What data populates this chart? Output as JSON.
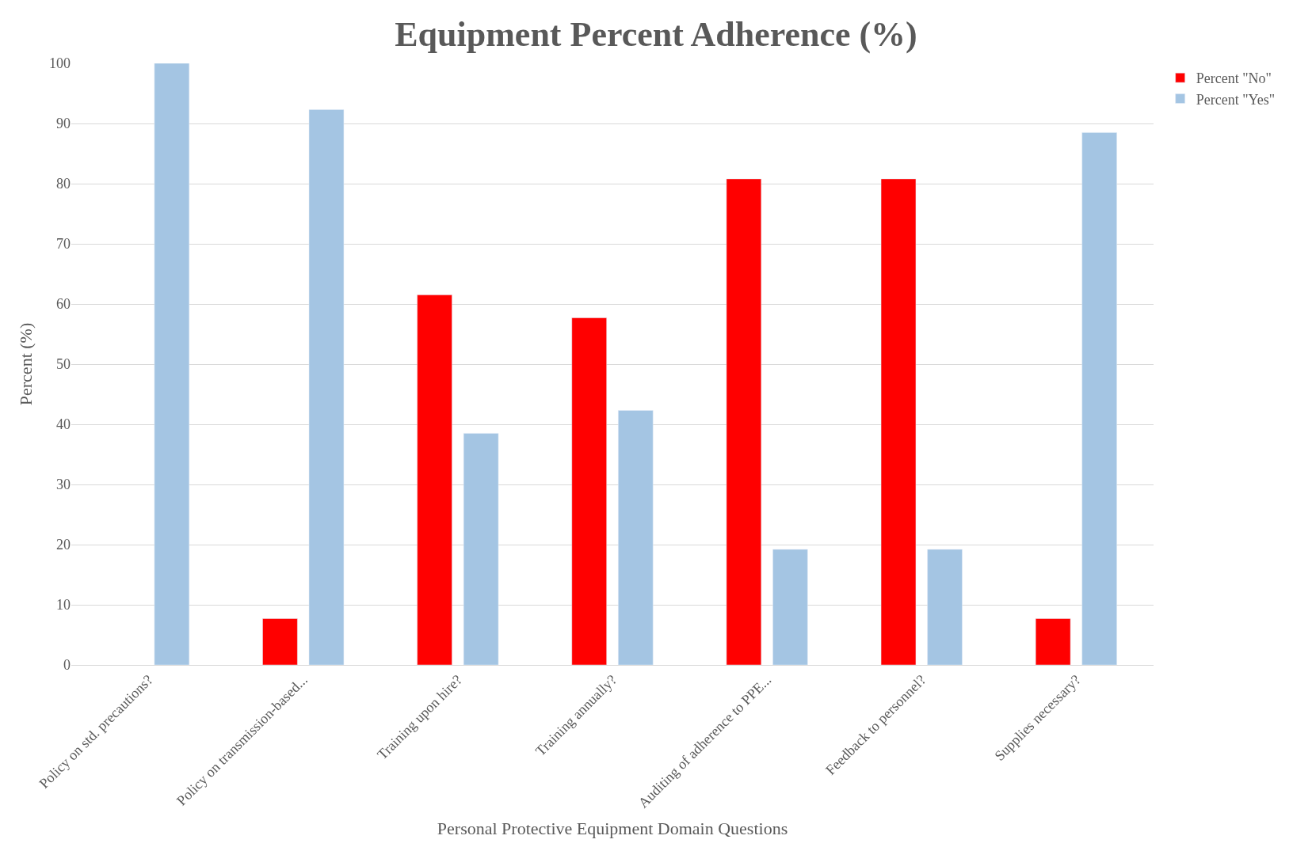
{
  "chart_data": {
    "type": "bar",
    "title": "Equipment Percent Adherence (%)",
    "xlabel": "Personal Protective Equipment Domain Questions",
    "ylabel": "Percent (%)",
    "categories": [
      "Policy on std. precautions?",
      "Policy on transmission-based...",
      "Training upon hire?",
      "Training annually?",
      "Auditing of adherence to PPE...",
      "Feedback to personnel?",
      "Supplies necessary?"
    ],
    "series": [
      {
        "name": "Percent \"No\"",
        "color": "#ff0000",
        "values": [
          null,
          7.7,
          61.5,
          57.7,
          80.8,
          80.8,
          7.7
        ]
      },
      {
        "name": "Percent \"Yes\"",
        "color": "#a4c5e3",
        "values": [
          100,
          92.3,
          38.5,
          42.3,
          19.2,
          19.2,
          88.5
        ]
      }
    ],
    "ylim": [
      0,
      100
    ],
    "yticks": [
      0,
      10,
      20,
      30,
      40,
      50,
      60,
      70,
      80,
      90,
      100
    ],
    "grid": "y",
    "legend": "top right"
  }
}
